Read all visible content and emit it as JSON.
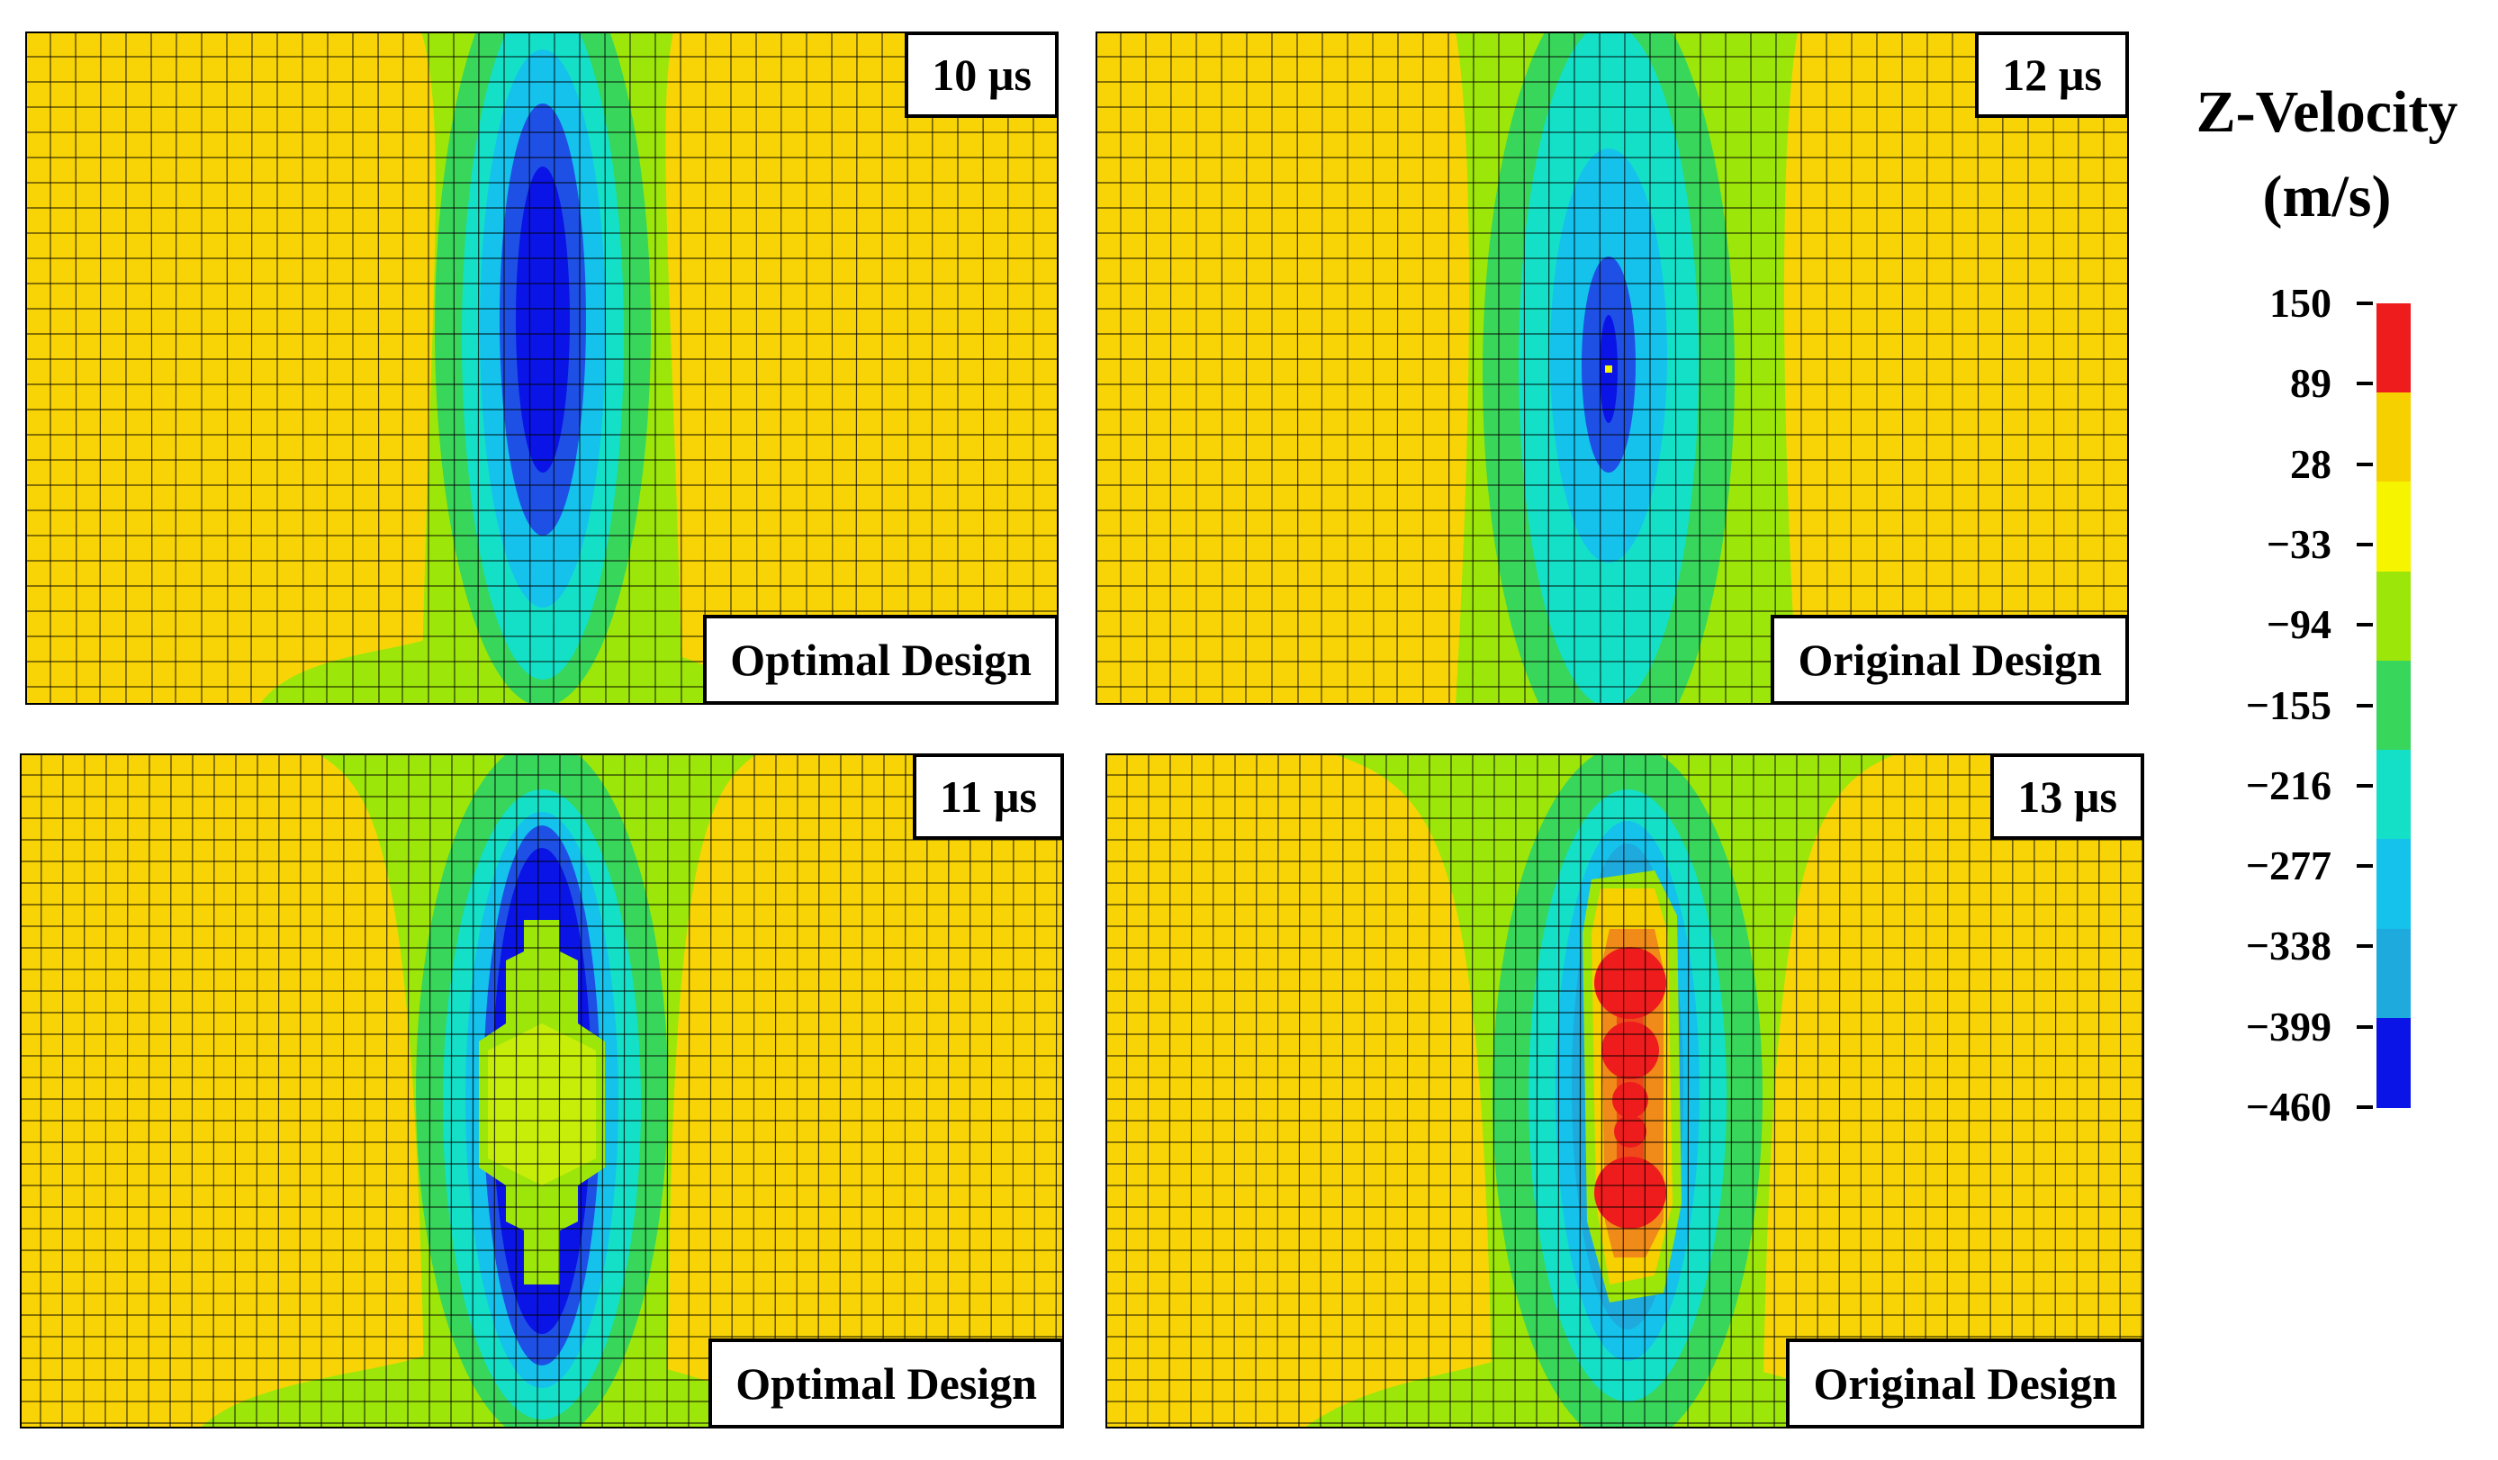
{
  "legend": {
    "title_line1": "Z-Velocity",
    "title_line2": "(m/s)",
    "ticks": [
      "150",
      "89",
      "28",
      "−33",
      "−94",
      "−155",
      "−216",
      "−277",
      "−338",
      "−399",
      "−460"
    ],
    "colors": [
      "#ee1c1c",
      "#f7d000",
      "#f7f400",
      "#9de60a",
      "#38d65a",
      "#14e0c8",
      "#14c2ec",
      "#1eaadc",
      "#0a14e6"
    ]
  },
  "panels": [
    {
      "time": "10 µs",
      "design": "Optimal Design",
      "pattern": "optimal-10"
    },
    {
      "time": "12 µs",
      "design": "Original Design",
      "pattern": "original-12"
    },
    {
      "time": "11 µs",
      "design": "Optimal Design",
      "pattern": "optimal-11"
    },
    {
      "time": "13 µs",
      "design": "Original Design",
      "pattern": "original-13"
    }
  ],
  "colors": {
    "background_field": "#f8d406",
    "mesh_line": "#000000"
  }
}
